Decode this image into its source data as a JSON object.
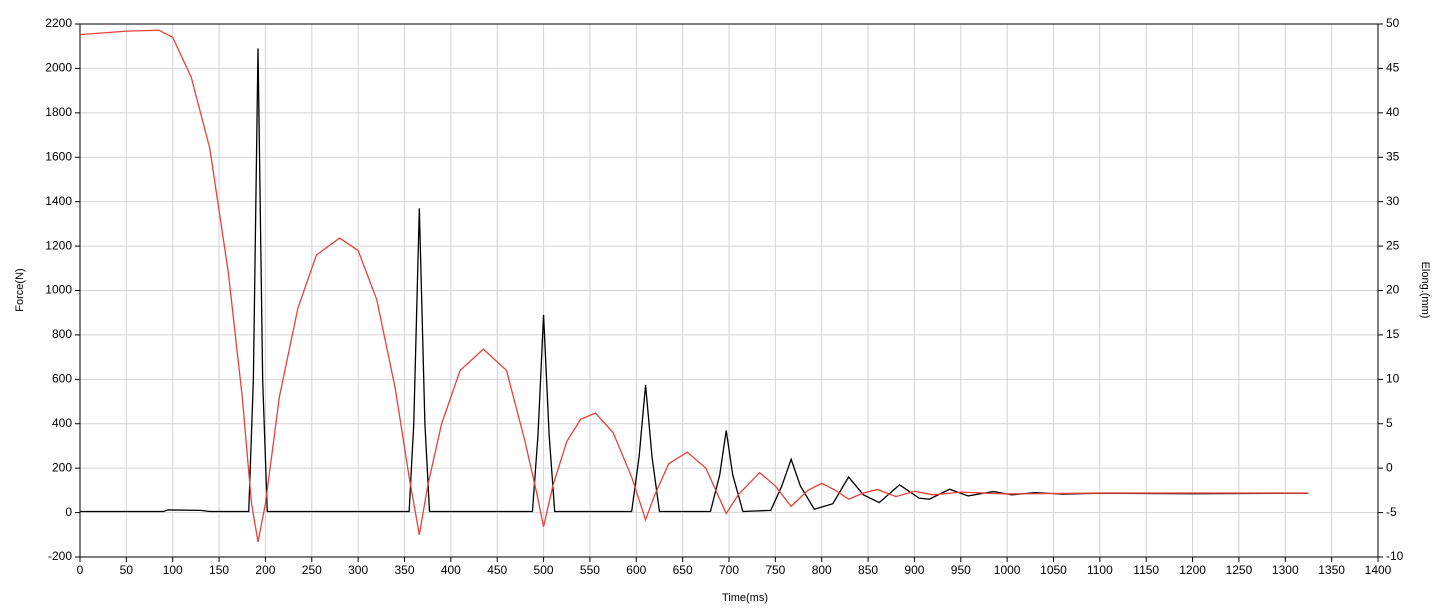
{
  "chart_data": {
    "type": "line",
    "x_label": "Time(ms)",
    "y_label": "Force(N)",
    "y2_label": "Elong.(mm)",
    "xlim": [
      0,
      1400
    ],
    "xticks": [
      0,
      50,
      100,
      150,
      200,
      250,
      300,
      350,
      400,
      450,
      500,
      550,
      600,
      650,
      700,
      750,
      800,
      850,
      900,
      950,
      1000,
      1050,
      1100,
      1150,
      1200,
      1250,
      1300,
      1350,
      1400
    ],
    "ylim": [
      -200,
      2200
    ],
    "yticks": [
      -200,
      0,
      200,
      400,
      600,
      800,
      1000,
      1200,
      1400,
      1600,
      1800,
      2000,
      2200
    ],
    "y2lim": [
      -10,
      50
    ],
    "y2ticks": [
      -10,
      -5,
      0,
      5,
      10,
      15,
      20,
      25,
      30,
      35,
      40,
      45,
      50
    ],
    "grid": true,
    "series": [
      {
        "color": "#000000",
        "x": [
          0,
          90,
          95,
          130,
          140,
          182,
          187,
          192,
          197,
          202,
          355,
          360,
          366,
          372,
          377,
          488,
          494,
          500,
          506,
          512,
          595,
          603,
          610,
          617,
          625,
          680,
          690,
          697,
          704,
          715,
          745,
          757,
          767,
          777,
          792,
          812,
          829,
          845,
          862,
          884,
          905,
          916,
          938,
          958,
          985,
          1005,
          1030,
          1060,
          1100,
          1200,
          1325
        ],
        "values": [
          5,
          5,
          12,
          10,
          5,
          5,
          600,
          2090,
          600,
          5,
          5,
          400,
          1370,
          400,
          5,
          5,
          350,
          890,
          350,
          5,
          5,
          250,
          575,
          250,
          5,
          5,
          170,
          370,
          170,
          5,
          10,
          120,
          240,
          120,
          15,
          40,
          160,
          80,
          45,
          125,
          65,
          60,
          105,
          75,
          95,
          80,
          90,
          83,
          87,
          85,
          87
        ]
      },
      {
        "color": "#e8403a",
        "axis": "y2",
        "x": [
          0,
          50,
          85,
          100,
          120,
          140,
          160,
          175,
          185,
          192,
          200,
          215,
          235,
          255,
          280,
          300,
          320,
          340,
          355,
          366,
          375,
          390,
          410,
          435,
          460,
          480,
          493,
          500,
          510,
          525,
          540,
          556,
          575,
          595,
          610,
          620,
          635,
          655,
          675,
          697,
          710,
          733,
          750,
          767,
          785,
          800,
          815,
          829,
          845,
          860,
          880,
          900,
          920,
          950,
          1000,
          1100,
          1325
        ],
        "values": [
          48.8,
          49.2,
          49.3,
          48.5,
          44,
          36,
          22,
          8,
          -4,
          -8.3,
          -4,
          8,
          18,
          24,
          25.9,
          24.5,
          19,
          9,
          -1,
          -7.5,
          -2,
          5,
          11,
          13.4,
          11,
          3,
          -3,
          -6.6,
          -2,
          3,
          5.5,
          6.2,
          4,
          -1,
          -5.8,
          -3,
          0.5,
          1.8,
          0,
          -5.1,
          -3,
          -0.5,
          -2,
          -4.3,
          -2.5,
          -1.7,
          -2.5,
          -3.5,
          -2.8,
          -2.4,
          -3.2,
          -2.6,
          -3.0,
          -2.7,
          -2.9,
          -2.8,
          -2.8
        ]
      }
    ]
  }
}
